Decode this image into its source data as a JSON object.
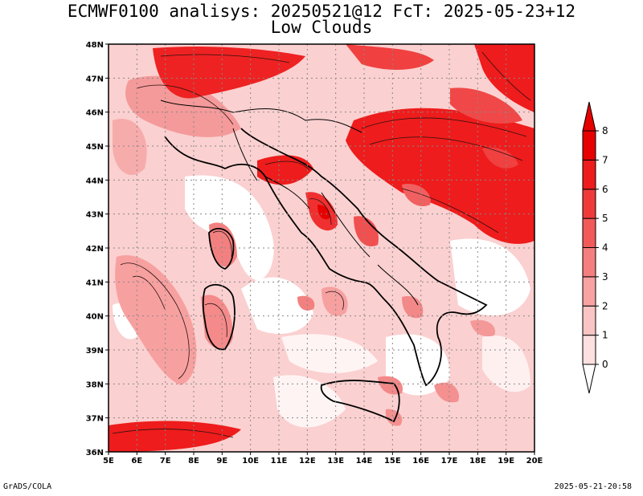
{
  "title_line1": "ECMWF0100 analisys: 20250521@12 FcT: 2025-05-23+12",
  "title_line2": "Low Clouds",
  "lat_labels": [
    "48N",
    "47N",
    "46N",
    "45N",
    "44N",
    "43N",
    "42N",
    "41N",
    "40N",
    "39N",
    "38N",
    "37N",
    "36N"
  ],
  "lon_labels": [
    "5E",
    "6E",
    "7E",
    "8E",
    "9E",
    "10E",
    "11E",
    "12E",
    "13E",
    "14E",
    "15E",
    "16E",
    "17E",
    "18E",
    "19E",
    "20E"
  ],
  "colorbar": {
    "levels": [
      "0",
      "1",
      "2",
      "3",
      "4",
      "5",
      "6",
      "7",
      "8"
    ],
    "colors": [
      "#ffffff",
      "#fde0e0",
      "#fbc4c4",
      "#f8a2a2",
      "#f57e7e",
      "#f25a5a",
      "#f03a3a",
      "#ee1c1c",
      "#e60000"
    ]
  },
  "footer_left": "GrADS/COLA",
  "footer_right": "2025-05-21-20:58"
}
